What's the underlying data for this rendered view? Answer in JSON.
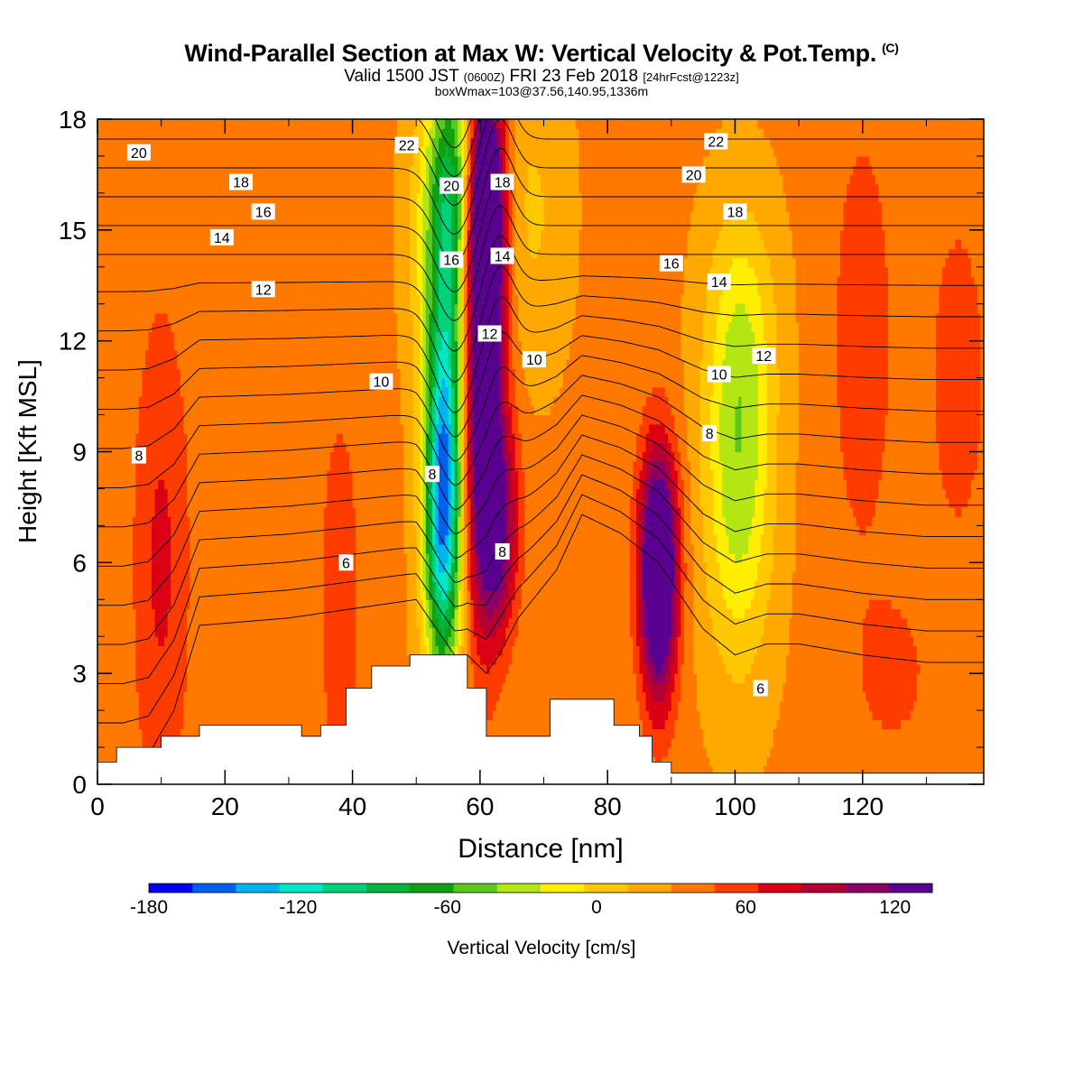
{
  "header": {
    "title": "Wind-Parallel Section at Max W: Vertical Velocity & Pot.Temp.",
    "copyright": "(C)",
    "valid_prefix": "Valid 1500 JST",
    "valid_utc": "(0600Z)",
    "valid_date": "FRI 23 Feb 2018",
    "forecast": "[24hrFcst@1223z]",
    "box_info": "boxWmax=103@37.56,140.95,1336m"
  },
  "chart_data": {
    "type": "heatmap",
    "xlabel": "Distance [nm]",
    "ylabel": "Height [Kft MSL]",
    "xlim": [
      0,
      139
    ],
    "ylim": [
      0,
      18
    ],
    "x_ticks": [
      0,
      20,
      40,
      60,
      80,
      100,
      120
    ],
    "y_ticks": [
      0,
      3,
      6,
      9,
      12,
      15,
      18
    ],
    "colorbar": {
      "label": "Vertical Velocity [cm/s]",
      "range": [
        -180,
        135
      ],
      "step": 15,
      "tick_values": [
        -180,
        -120,
        -60,
        0,
        60,
        120
      ],
      "colors": [
        "#0000ee",
        "#0060ee",
        "#00b4f0",
        "#00e6c8",
        "#00d27a",
        "#00b43c",
        "#10a010",
        "#5cc81e",
        "#b4e614",
        "#ffee00",
        "#ffc800",
        "#ffa800",
        "#ff7800",
        "#ff3c00",
        "#dc0014",
        "#b40032",
        "#8c0064",
        "#5a0090"
      ]
    },
    "velocity_cells": [
      {
        "x": 54,
        "y": 7.2,
        "sx": 2.1,
        "sy": 3.2,
        "value": -125
      },
      {
        "x": 55,
        "y": 11.5,
        "sx": 2.0,
        "sy": 4.5,
        "value": -70
      },
      {
        "x": 56,
        "y": 16.5,
        "sx": 2.5,
        "sy": 2.5,
        "value": -55
      },
      {
        "x": 52,
        "y": 15.0,
        "sx": 2.5,
        "sy": 3.0,
        "value": -35
      },
      {
        "x": 60.5,
        "y": 10.0,
        "sx": 2.3,
        "sy": 4.0,
        "value": 95
      },
      {
        "x": 61,
        "y": 15.5,
        "sx": 2.0,
        "sy": 2.5,
        "value": 125
      },
      {
        "x": 63,
        "y": 7.0,
        "sx": 2.2,
        "sy": 2.0,
        "value": 60
      },
      {
        "x": 88,
        "y": 5.2,
        "sx": 2.0,
        "sy": 2.2,
        "value": 105
      },
      {
        "x": 88,
        "y": 7.0,
        "sx": 2.2,
        "sy": 2.0,
        "value": 45
      },
      {
        "x": 100.5,
        "y": 8.0,
        "sx": 3.8,
        "sy": 3.5,
        "value": -55
      },
      {
        "x": 101,
        "y": 12.5,
        "sx": 4.0,
        "sy": 2.5,
        "value": -28
      },
      {
        "x": 10,
        "y": 6.0,
        "sx": 3.2,
        "sy": 5.0,
        "value": 30
      },
      {
        "x": 120,
        "y": 12.0,
        "sx": 4.0,
        "sy": 5.0,
        "value": 20
      },
      {
        "x": 135,
        "y": 11.0,
        "sx": 3.0,
        "sy": 3.0,
        "value": 25
      },
      {
        "x": 38,
        "y": 5.0,
        "sx": 3.0,
        "sy": 5.0,
        "value": 18
      },
      {
        "x": 68,
        "y": 15.5,
        "sx": 4.0,
        "sy": 3.0,
        "value": -20
      },
      {
        "x": 125,
        "y": 3.0,
        "sx": 4.0,
        "sy": 1.5,
        "value": 18
      }
    ],
    "terrain": [
      [
        0,
        0.6
      ],
      [
        3,
        0.6
      ],
      [
        3,
        1.0
      ],
      [
        10,
        1.0
      ],
      [
        10,
        1.3
      ],
      [
        16,
        1.3
      ],
      [
        16,
        1.6
      ],
      [
        32,
        1.6
      ],
      [
        32,
        1.3
      ],
      [
        35,
        1.3
      ],
      [
        35,
        1.6
      ],
      [
        39,
        1.6
      ],
      [
        39,
        2.6
      ],
      [
        43,
        2.6
      ],
      [
        43,
        3.2
      ],
      [
        49,
        3.2
      ],
      [
        49,
        3.5
      ],
      [
        58,
        3.5
      ],
      [
        58,
        2.6
      ],
      [
        61,
        2.6
      ],
      [
        61,
        1.3
      ],
      [
        71,
        1.3
      ],
      [
        71,
        2.3
      ],
      [
        81,
        2.3
      ],
      [
        81,
        1.6
      ],
      [
        85,
        1.6
      ],
      [
        85,
        1.3
      ],
      [
        87,
        1.3
      ],
      [
        87,
        0.6
      ],
      [
        90,
        0.6
      ],
      [
        90,
        0.3
      ],
      [
        139,
        0.3
      ]
    ],
    "theta_base": [
      [
        0,
        0.6
      ],
      [
        4,
        0.6
      ],
      [
        8,
        0.8
      ],
      [
        12,
        2.0
      ],
      [
        16,
        4.3
      ],
      [
        30,
        4.5
      ],
      [
        42,
        4.8
      ],
      [
        50,
        5.0
      ],
      [
        56,
        3.5
      ],
      [
        58,
        3.5
      ],
      [
        61,
        3.0
      ],
      [
        63,
        3.5
      ],
      [
        66,
        4.5
      ],
      [
        72,
        5.8
      ],
      [
        76,
        7.3
      ],
      [
        82,
        6.8
      ],
      [
        88,
        6.0
      ],
      [
        95,
        4.2
      ],
      [
        100,
        3.5
      ],
      [
        105,
        3.8
      ],
      [
        110,
        3.8
      ],
      [
        120,
        3.5
      ],
      [
        130,
        3.3
      ],
      [
        139,
        3.3
      ]
    ],
    "theta_levels_k": [
      5,
      6,
      7,
      8,
      9,
      10,
      11,
      12,
      13,
      14,
      15,
      16,
      17,
      18,
      19,
      20,
      21,
      22,
      23,
      24
    ],
    "theta_labels": [
      {
        "text": "20",
        "x": 6.5,
        "y": 17.1
      },
      {
        "text": "22",
        "x": 48.5,
        "y": 17.3
      },
      {
        "text": "18",
        "x": 22.5,
        "y": 16.3
      },
      {
        "text": "16",
        "x": 26,
        "y": 15.5
      },
      {
        "text": "14",
        "x": 19.5,
        "y": 14.8
      },
      {
        "text": "12",
        "x": 26,
        "y": 13.4
      },
      {
        "text": "10",
        "x": 44.5,
        "y": 10.9
      },
      {
        "text": "8",
        "x": 6.5,
        "y": 8.9
      },
      {
        "text": "6",
        "x": 39,
        "y": 6.0
      },
      {
        "text": "20",
        "x": 55.5,
        "y": 16.2
      },
      {
        "text": "18",
        "x": 63.5,
        "y": 16.3
      },
      {
        "text": "16",
        "x": 55.5,
        "y": 14.2
      },
      {
        "text": "14",
        "x": 63.5,
        "y": 14.3
      },
      {
        "text": "12",
        "x": 61.5,
        "y": 12.2
      },
      {
        "text": "10",
        "x": 68.5,
        "y": 11.5
      },
      {
        "text": "8",
        "x": 52.5,
        "y": 8.4
      },
      {
        "text": "8",
        "x": 63.5,
        "y": 6.3
      },
      {
        "text": "22",
        "x": 97,
        "y": 17.4
      },
      {
        "text": "20",
        "x": 93.5,
        "y": 16.5
      },
      {
        "text": "18",
        "x": 100,
        "y": 15.5
      },
      {
        "text": "16",
        "x": 90,
        "y": 14.1
      },
      {
        "text": "14",
        "x": 97.5,
        "y": 13.6
      },
      {
        "text": "12",
        "x": 104.5,
        "y": 11.6
      },
      {
        "text": "10",
        "x": 97.5,
        "y": 11.1
      },
      {
        "text": "8",
        "x": 96,
        "y": 9.5
      },
      {
        "text": "6",
        "x": 104,
        "y": 2.6
      }
    ]
  }
}
